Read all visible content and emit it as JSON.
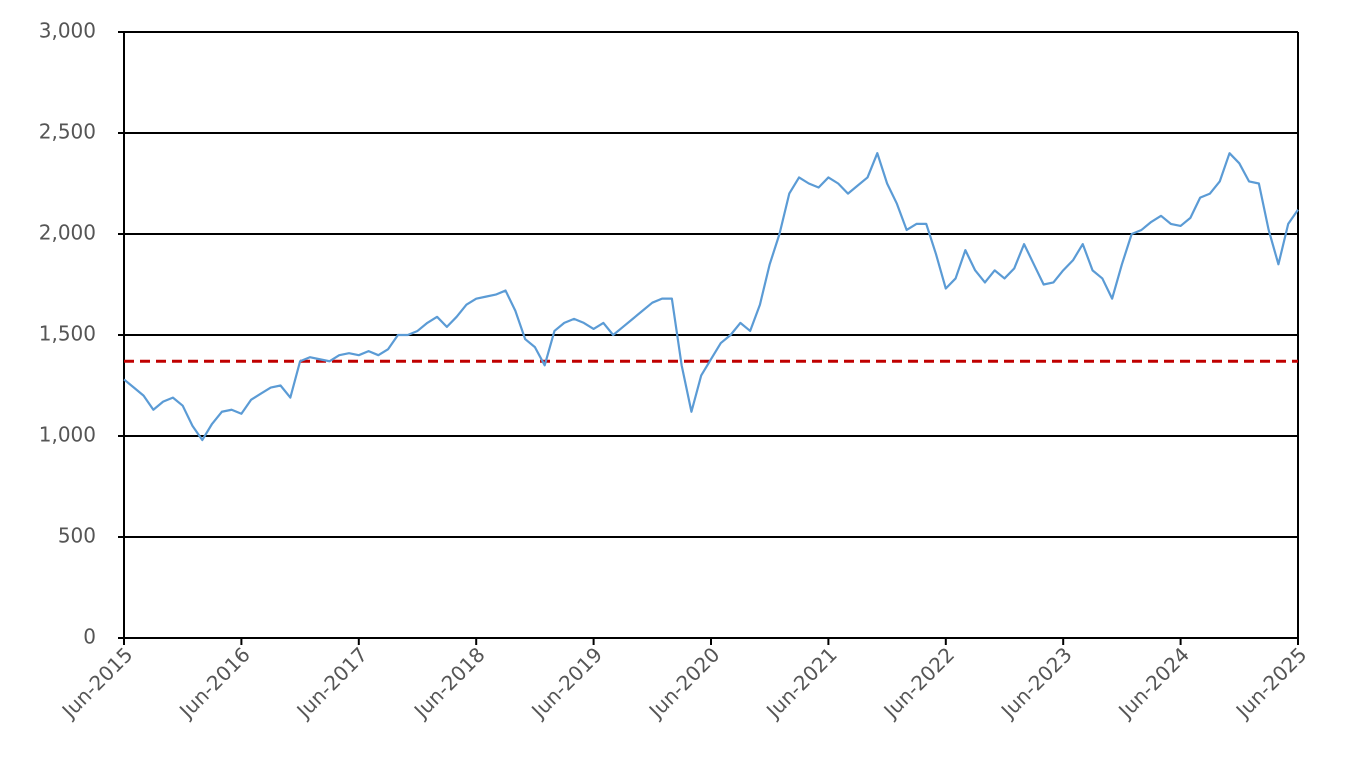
{
  "chart_data": {
    "type": "line",
    "x": [
      "2015-06",
      "2015-07",
      "2015-08",
      "2015-09",
      "2015-10",
      "2015-11",
      "2015-12",
      "2016-01",
      "2016-02",
      "2016-03",
      "2016-04",
      "2016-05",
      "2016-06",
      "2016-07",
      "2016-08",
      "2016-09",
      "2016-10",
      "2016-11",
      "2016-12",
      "2017-01",
      "2017-02",
      "2017-03",
      "2017-04",
      "2017-05",
      "2017-06",
      "2017-07",
      "2017-08",
      "2017-09",
      "2017-10",
      "2017-11",
      "2017-12",
      "2018-01",
      "2018-02",
      "2018-03",
      "2018-04",
      "2018-05",
      "2018-06",
      "2018-07",
      "2018-08",
      "2018-09",
      "2018-10",
      "2018-11",
      "2018-12",
      "2019-01",
      "2019-02",
      "2019-03",
      "2019-04",
      "2019-05",
      "2019-06",
      "2019-07",
      "2019-08",
      "2019-09",
      "2019-10",
      "2019-11",
      "2019-12",
      "2020-01",
      "2020-02",
      "2020-03",
      "2020-04",
      "2020-05",
      "2020-06",
      "2020-07",
      "2020-08",
      "2020-09",
      "2020-10",
      "2020-11",
      "2020-12",
      "2021-01",
      "2021-02",
      "2021-03",
      "2021-04",
      "2021-05",
      "2021-06",
      "2021-07",
      "2021-08",
      "2021-09",
      "2021-10",
      "2021-11",
      "2021-12",
      "2022-01",
      "2022-02",
      "2022-03",
      "2022-04",
      "2022-05",
      "2022-06",
      "2022-07",
      "2022-08",
      "2022-09",
      "2022-10",
      "2022-11",
      "2022-12",
      "2023-01",
      "2023-02",
      "2023-03",
      "2023-04",
      "2023-05",
      "2023-06",
      "2023-07",
      "2023-08",
      "2023-09",
      "2023-10",
      "2023-11",
      "2023-12",
      "2024-01",
      "2024-02",
      "2024-03",
      "2024-04",
      "2024-05",
      "2024-06",
      "2024-07",
      "2024-08",
      "2024-09",
      "2024-10",
      "2024-11",
      "2024-12",
      "2025-01",
      "2025-02",
      "2025-03",
      "2025-04",
      "2025-05",
      "2025-06"
    ],
    "series": [
      {
        "color": "#5b9bd5",
        "values": [
          1280,
          1240,
          1200,
          1130,
          1170,
          1190,
          1150,
          1050,
          980,
          1060,
          1120,
          1130,
          1110,
          1180,
          1210,
          1240,
          1250,
          1190,
          1370,
          1390,
          1380,
          1370,
          1400,
          1410,
          1400,
          1420,
          1400,
          1430,
          1500,
          1500,
          1520,
          1560,
          1590,
          1540,
          1590,
          1650,
          1680,
          1690,
          1700,
          1720,
          1620,
          1480,
          1440,
          1350,
          1520,
          1560,
          1580,
          1560,
          1530,
          1560,
          1500,
          1540,
          1580,
          1620,
          1660,
          1680,
          1680,
          1350,
          1120,
          1300,
          1380,
          1460,
          1500,
          1560,
          1520,
          1650,
          1850,
          2000,
          2200,
          2280,
          2250,
          2230,
          2280,
          2250,
          2200,
          2240,
          2280,
          2400,
          2250,
          2150,
          2020,
          2050,
          2050,
          1900,
          1730,
          1780,
          1920,
          1820,
          1760,
          1820,
          1780,
          1830,
          1950,
          1850,
          1750,
          1760,
          1820,
          1870,
          1950,
          1820,
          1780,
          1680,
          1850,
          2000,
          2020,
          2060,
          2090,
          2050,
          2040,
          2080,
          2180,
          2200,
          2260,
          2400,
          2350,
          2260,
          2250,
          2020,
          1850,
          2050,
          2120
        ]
      }
    ],
    "reference_line": {
      "value": 1370,
      "color": "#c00000",
      "style": "dashed"
    },
    "xlim": [
      "2015-06",
      "2025-06"
    ],
    "xticks": [
      {
        "value": "2015-06",
        "label": "Jun-2015"
      },
      {
        "value": "2016-06",
        "label": "Jun-2016"
      },
      {
        "value": "2017-06",
        "label": "Jun-2017"
      },
      {
        "value": "2018-06",
        "label": "Jun-2018"
      },
      {
        "value": "2019-06",
        "label": "Jun-2019"
      },
      {
        "value": "2020-06",
        "label": "Jun-2020"
      },
      {
        "value": "2021-06",
        "label": "Jun-2021"
      },
      {
        "value": "2022-06",
        "label": "Jun-2022"
      },
      {
        "value": "2023-06",
        "label": "Jun-2023"
      },
      {
        "value": "2024-06",
        "label": "Jun-2024"
      },
      {
        "value": "2025-06",
        "label": "Jun-2025"
      }
    ],
    "ylim": [
      0,
      3000
    ],
    "yticks": [
      0,
      {
        "value": 500,
        "label": "500"
      },
      {
        "value": 1000,
        "label": "1,000"
      },
      {
        "value": 1500,
        "label": "1,500"
      },
      {
        "value": 2000,
        "label": "2,000"
      },
      {
        "value": 2500,
        "label": "2,500"
      },
      {
        "value": 3000,
        "label": "3,000"
      }
    ],
    "grid": true
  }
}
